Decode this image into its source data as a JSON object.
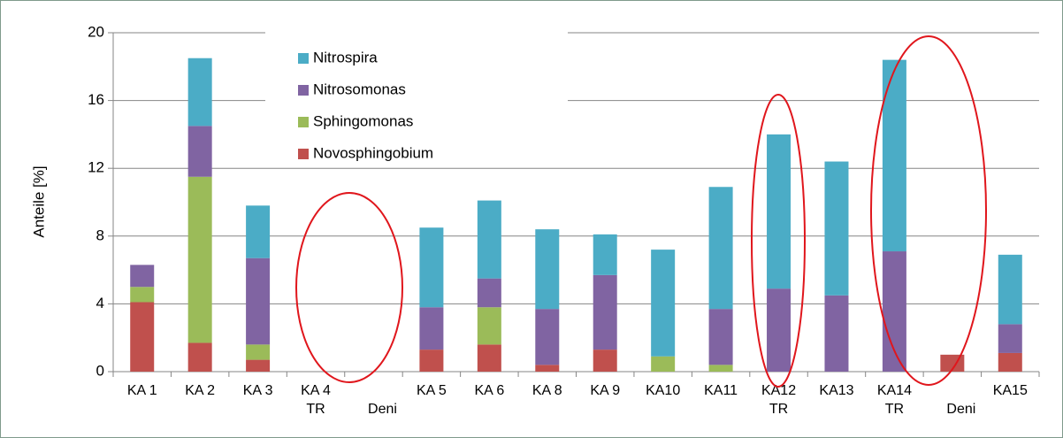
{
  "chart_data": {
    "type": "stacked_bar",
    "y_label": "Anteile [%]",
    "categories": [
      "KA 1",
      "KA 2",
      "KA 3",
      "KA 4\nTR",
      "Deni",
      "KA 5",
      "KA 6",
      "KA 8",
      "KA 9",
      "KA10",
      "KA11",
      "KA12\nTR",
      "KA13",
      "KA14\nTR",
      "Deni",
      "KA15"
    ],
    "series": [
      {
        "name": "Novosphingobium",
        "color": "#c0504d",
        "values": [
          4.1,
          1.7,
          0.7,
          0,
          0,
          1.3,
          1.6,
          0.4,
          1.3,
          0,
          0,
          0,
          0,
          0,
          1.0,
          1.1
        ]
      },
      {
        "name": "Sphingomonas",
        "color": "#9bbb59",
        "values": [
          0.9,
          9.8,
          0.9,
          0,
          0,
          0,
          2.2,
          0,
          0,
          0.9,
          0.4,
          0,
          0,
          0,
          0,
          0
        ]
      },
      {
        "name": "Nitrosomonas",
        "color": "#8064a2",
        "values": [
          1.3,
          3.0,
          5.1,
          0,
          0,
          2.5,
          1.7,
          3.3,
          4.4,
          0,
          3.3,
          4.9,
          4.5,
          7.1,
          0,
          1.7
        ]
      },
      {
        "name": "Nitrospira",
        "color": "#4bacc6",
        "values": [
          0,
          4.0,
          3.1,
          0,
          0,
          4.7,
          4.6,
          4.7,
          2.4,
          6.3,
          7.2,
          9.1,
          7.9,
          11.3,
          0,
          4.1
        ]
      }
    ],
    "ylim": [
      0,
      20
    ],
    "yticks": [
      0,
      4,
      8,
      12,
      16,
      20
    ],
    "grid": true
  }
}
